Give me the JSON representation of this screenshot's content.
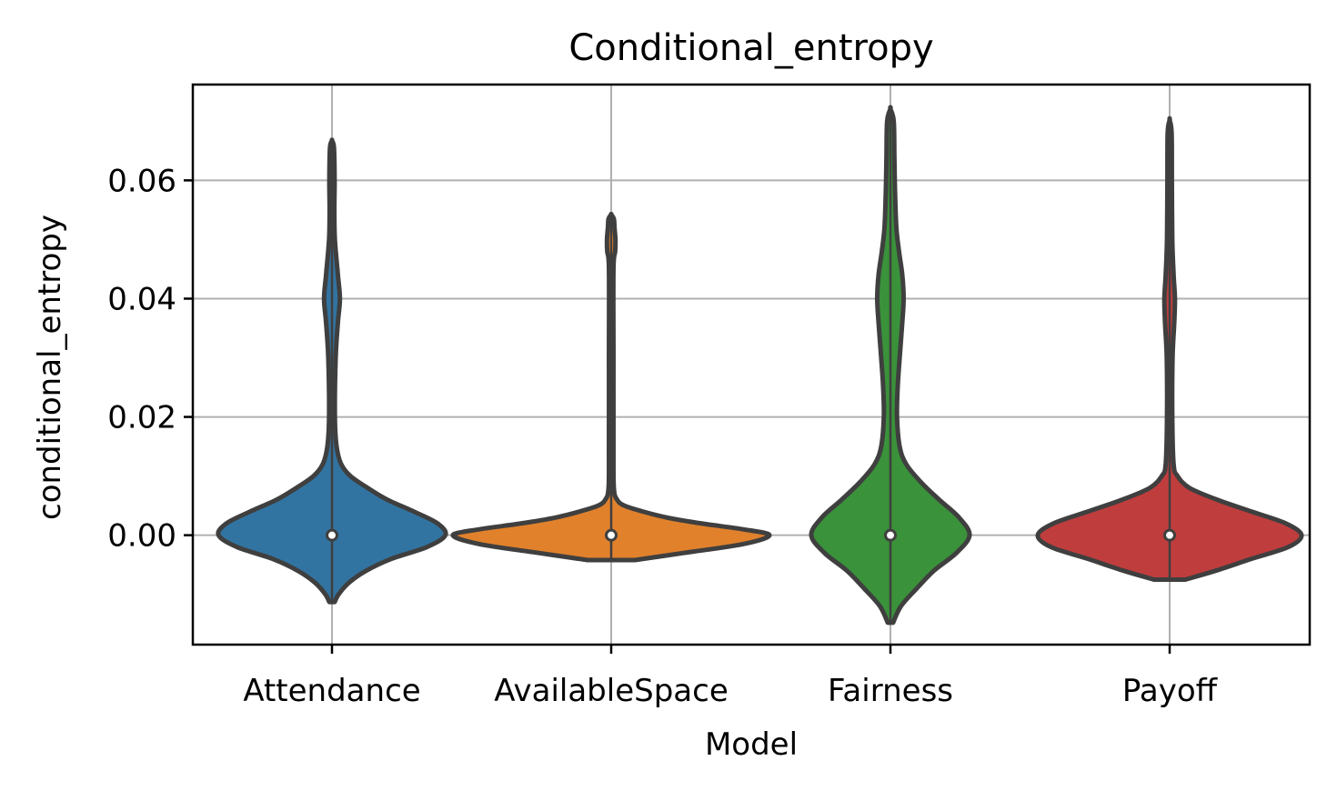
{
  "chart_data": {
    "type": "violin",
    "title": "Conditional_entropy",
    "xlabel": "Model",
    "ylabel": "conditional_entropy",
    "ylim": [
      -0.0185,
      0.0762
    ],
    "yticks": [
      0.0,
      0.02,
      0.04,
      0.06
    ],
    "ytick_labels": [
      "0.00",
      "0.02",
      "0.04",
      "0.06"
    ],
    "grid": true,
    "categories": [
      "Attendance",
      "AvailableSpace",
      "Fairness",
      "Payoff"
    ],
    "series": [
      {
        "category": "Attendance",
        "color": "#3274a1",
        "min": -0.0113,
        "max": 0.0667,
        "median": 0.0,
        "profile": [
          [
            -0.0113,
            0.02
          ],
          [
            -0.01,
            0.05
          ],
          [
            -0.008,
            0.13
          ],
          [
            -0.006,
            0.26
          ],
          [
            -0.004,
            0.45
          ],
          [
            -0.002,
            0.72
          ],
          [
            0.0,
            0.86
          ],
          [
            0.002,
            0.8
          ],
          [
            0.004,
            0.62
          ],
          [
            0.006,
            0.42
          ],
          [
            0.008,
            0.27
          ],
          [
            0.01,
            0.14
          ],
          [
            0.012,
            0.07
          ],
          [
            0.015,
            0.035
          ],
          [
            0.02,
            0.022
          ],
          [
            0.03,
            0.028
          ],
          [
            0.036,
            0.045
          ],
          [
            0.04,
            0.06
          ],
          [
            0.044,
            0.045
          ],
          [
            0.05,
            0.022
          ],
          [
            0.055,
            0.018
          ],
          [
            0.06,
            0.02
          ],
          [
            0.0655,
            0.015
          ],
          [
            0.0667,
            0.0
          ]
        ]
      },
      {
        "category": "AvailableSpace",
        "color": "#e1812c",
        "min": -0.0042,
        "max": 0.0542,
        "median": 0.0,
        "profile": [
          [
            -0.0042,
            0.18
          ],
          [
            -0.003,
            0.55
          ],
          [
            -0.0015,
            1.0
          ],
          [
            0.0,
            1.2
          ],
          [
            0.001,
            1.0
          ],
          [
            0.002,
            0.68
          ],
          [
            0.003,
            0.42
          ],
          [
            0.004,
            0.24
          ],
          [
            0.005,
            0.1
          ],
          [
            0.006,
            0.045
          ],
          [
            0.008,
            0.02
          ],
          [
            0.015,
            0.017
          ],
          [
            0.03,
            0.017
          ],
          [
            0.045,
            0.017
          ],
          [
            0.048,
            0.03
          ],
          [
            0.05,
            0.032
          ],
          [
            0.052,
            0.025
          ],
          [
            0.0535,
            0.02
          ],
          [
            0.0542,
            0.0
          ]
        ]
      },
      {
        "category": "Fairness",
        "color": "#3a923a",
        "min": -0.0148,
        "max": 0.0721,
        "median": 0.0,
        "profile": [
          [
            -0.0148,
            0.02
          ],
          [
            -0.012,
            0.08
          ],
          [
            -0.009,
            0.2
          ],
          [
            -0.006,
            0.33
          ],
          [
            -0.003,
            0.5
          ],
          [
            0.0,
            0.6
          ],
          [
            0.003,
            0.52
          ],
          [
            0.006,
            0.37
          ],
          [
            0.009,
            0.23
          ],
          [
            0.012,
            0.12
          ],
          [
            0.015,
            0.07
          ],
          [
            0.02,
            0.05
          ],
          [
            0.025,
            0.055
          ],
          [
            0.03,
            0.07
          ],
          [
            0.036,
            0.09
          ],
          [
            0.04,
            0.1
          ],
          [
            0.044,
            0.09
          ],
          [
            0.048,
            0.065
          ],
          [
            0.052,
            0.045
          ],
          [
            0.058,
            0.035
          ],
          [
            0.064,
            0.03
          ],
          [
            0.07,
            0.025
          ],
          [
            0.0721,
            0.0
          ]
        ]
      },
      {
        "category": "Payoff",
        "color": "#c03d3e",
        "min": -0.0075,
        "max": 0.0702,
        "median": 0.0,
        "profile": [
          [
            -0.0075,
            0.12
          ],
          [
            -0.006,
            0.35
          ],
          [
            -0.004,
            0.62
          ],
          [
            -0.002,
            0.9
          ],
          [
            0.0,
            1.0
          ],
          [
            0.002,
            0.88
          ],
          [
            0.004,
            0.62
          ],
          [
            0.006,
            0.36
          ],
          [
            0.008,
            0.15
          ],
          [
            0.01,
            0.06
          ],
          [
            0.012,
            0.03
          ],
          [
            0.02,
            0.02
          ],
          [
            0.03,
            0.022
          ],
          [
            0.036,
            0.035
          ],
          [
            0.04,
            0.04
          ],
          [
            0.044,
            0.03
          ],
          [
            0.05,
            0.02
          ],
          [
            0.06,
            0.017
          ],
          [
            0.068,
            0.015
          ],
          [
            0.0702,
            0.0
          ]
        ]
      }
    ]
  }
}
